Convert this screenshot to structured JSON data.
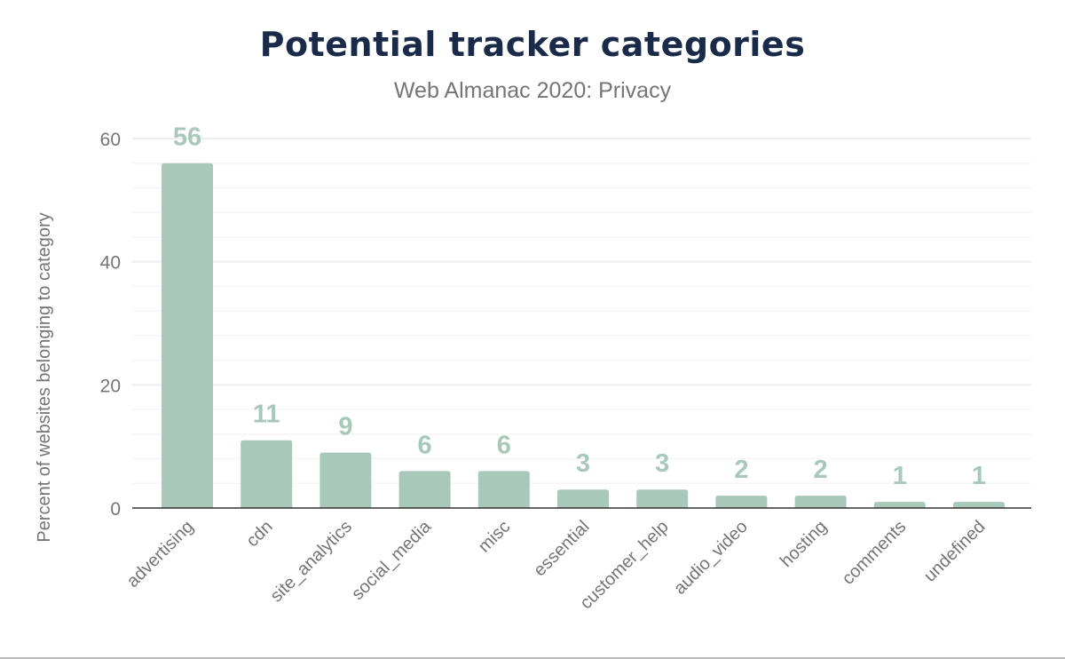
{
  "chart_data": {
    "type": "bar",
    "title": "Potential tracker categories",
    "subtitle": "Web Almanac 2020: Privacy",
    "xlabel": "",
    "ylabel": "Percent of websites belonging to category",
    "categories": [
      "advertising",
      "cdn",
      "site_analytics",
      "social_media",
      "misc",
      "essential",
      "customer_help",
      "audio_video",
      "hosting",
      "comments",
      "undefined"
    ],
    "values": [
      56,
      11,
      9,
      6,
      6,
      3,
      3,
      2,
      2,
      1,
      1
    ],
    "data_labels": [
      "56",
      "11",
      "9",
      "6",
      "6",
      "3",
      "3",
      "2",
      "2",
      "1",
      "1"
    ],
    "ylim": [
      0,
      60
    ],
    "yticks": [
      "0",
      "20",
      "40",
      "60"
    ],
    "grid": true,
    "legend": "none",
    "colors": {
      "bar": "#a8c9ba",
      "label": "#a8c9ba",
      "title": "#1a2b49"
    }
  }
}
